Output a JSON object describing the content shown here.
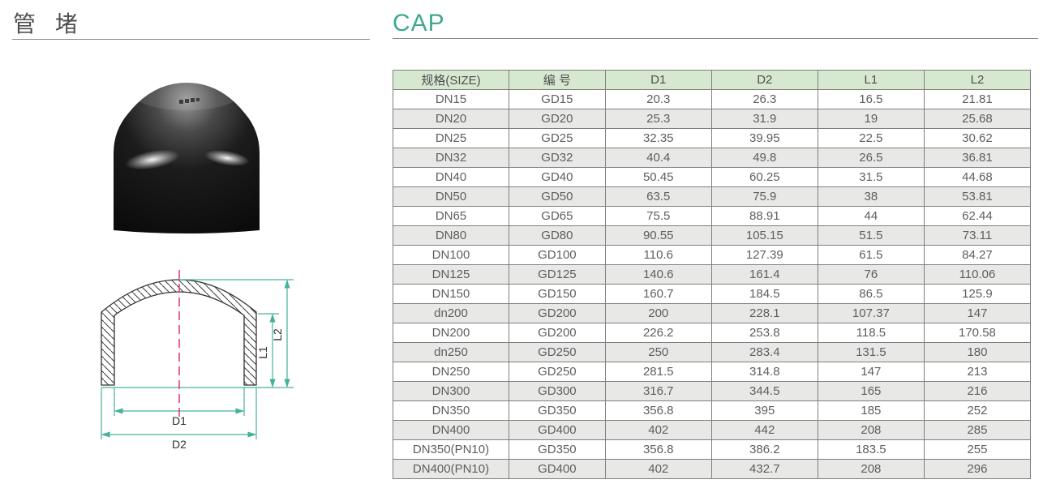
{
  "page": {
    "title_cn": "管 堵",
    "title_en": "CAP"
  },
  "table": {
    "headers": [
      "规格(SIZE)",
      "编 号",
      "D1",
      "D2",
      "L1",
      "L2"
    ],
    "rows": [
      [
        "DN15",
        "GD15",
        "20.3",
        "26.3",
        "16.5",
        "21.81"
      ],
      [
        "DN20",
        "GD20",
        "25.3",
        "31.9",
        "19",
        "25.68"
      ],
      [
        "DN25",
        "GD25",
        "32.35",
        "39.95",
        "22.5",
        "30.62"
      ],
      [
        "DN32",
        "GD32",
        "40.4",
        "49.8",
        "26.5",
        "36.81"
      ],
      [
        "DN40",
        "GD40",
        "50.45",
        "60.25",
        "31.5",
        "44.68"
      ],
      [
        "DN50",
        "GD50",
        "63.5",
        "75.9",
        "38",
        "53.81"
      ],
      [
        "DN65",
        "GD65",
        "75.5",
        "88.91",
        "44",
        "62.44"
      ],
      [
        "DN80",
        "GD80",
        "90.55",
        "105.15",
        "51.5",
        "73.11"
      ],
      [
        "DN100",
        "GD100",
        "110.6",
        "127.39",
        "61.5",
        "84.27"
      ],
      [
        "DN125",
        "GD125",
        "140.6",
        "161.4",
        "76",
        "110.06"
      ],
      [
        "DN150",
        "GD150",
        "160.7",
        "184.5",
        "86.5",
        "125.9"
      ],
      [
        "dn200",
        "GD200",
        "200",
        "228.1",
        "107.37",
        "147"
      ],
      [
        "DN200",
        "GD200",
        "226.2",
        "253.8",
        "118.5",
        "170.58"
      ],
      [
        "dn250",
        "GD250",
        "250",
        "283.4",
        "131.5",
        "180"
      ],
      [
        "DN250",
        "GD250",
        "281.5",
        "314.8",
        "147",
        "213"
      ],
      [
        "DN300",
        "GD300",
        "316.7",
        "344.5",
        "165",
        "216"
      ],
      [
        "DN350",
        "GD350",
        "356.8",
        "395",
        "185",
        "252"
      ],
      [
        "DN400",
        "GD400",
        "402",
        "442",
        "208",
        "285"
      ],
      [
        "DN350(PN10)",
        "GD350",
        "356.8",
        "386.2",
        "183.5",
        "255"
      ],
      [
        "DN400(PN10)",
        "GD400",
        "402",
        "432.7",
        "208",
        "296"
      ]
    ]
  },
  "diagram": {
    "labels": {
      "d1": "D1",
      "d2": "D2",
      "l1": "L1",
      "l2": "L2"
    }
  },
  "colors": {
    "accent_teal_title": "#3fa98e",
    "dimension_line_teal": "#45b29b",
    "centerline_magenta": "#e0337c",
    "table_header_bg": "#d7e8d1",
    "table_alt_row_bg": "#e8e8e6",
    "table_border": "#7f7f7f",
    "rule_gray": "#8a8a8a",
    "text_gray": "#5e5e5e"
  }
}
